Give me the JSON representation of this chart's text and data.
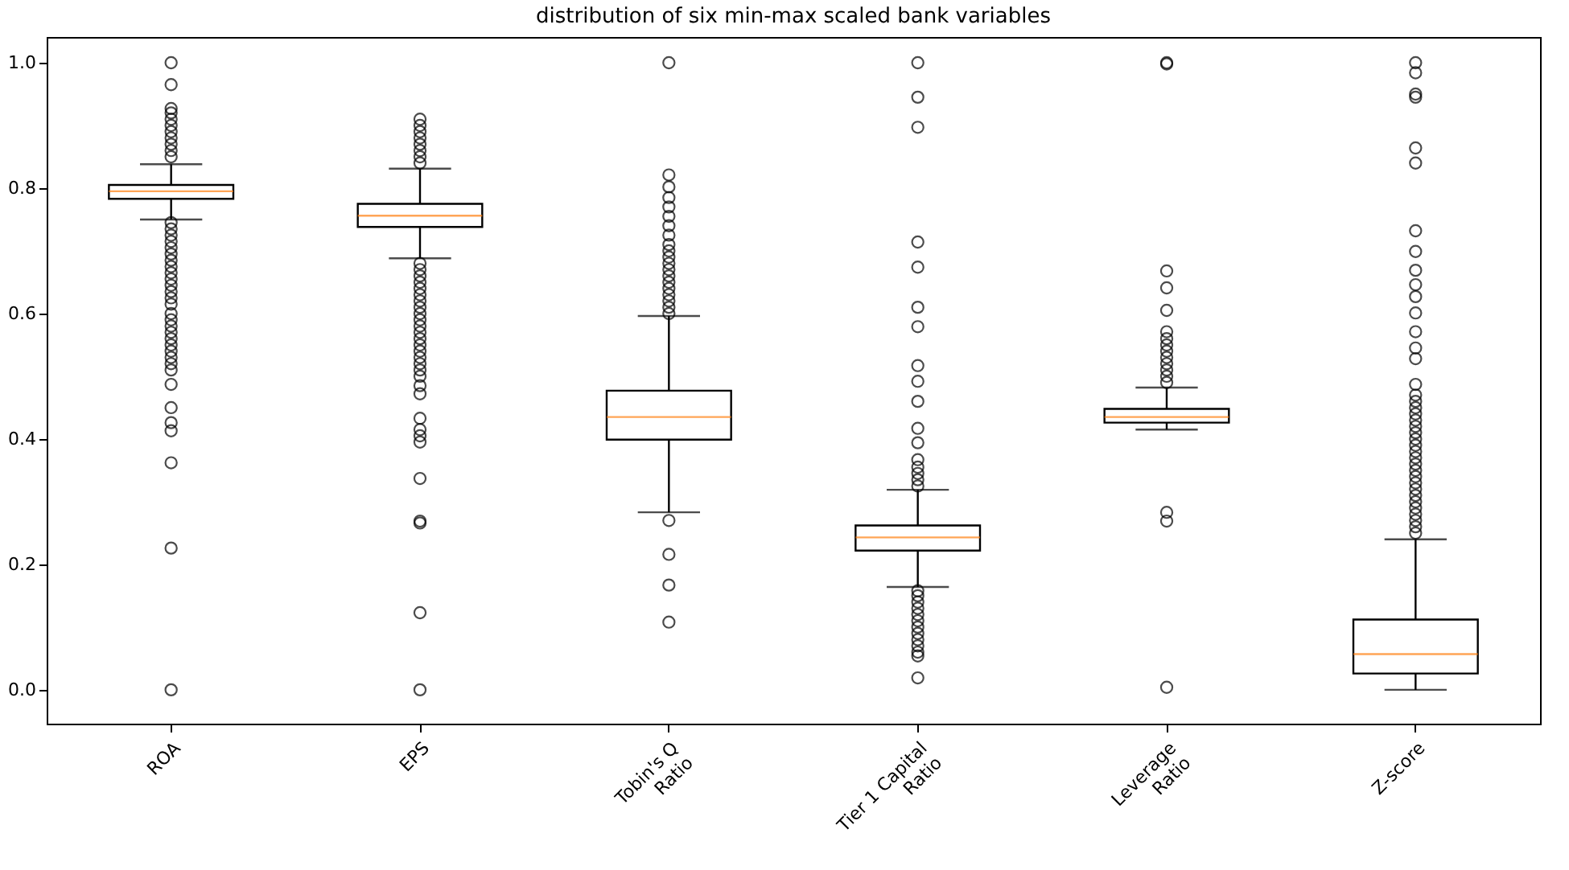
{
  "chart_data": {
    "type": "box",
    "title": "distribution of six min-max scaled bank variables",
    "categories": [
      "ROA",
      "EPS",
      "Tobin's Q\nRatio",
      "Tier 1 Capital\nRatio",
      "Leverage\nRatio",
      "Z-score"
    ],
    "ylim": [
      -0.054,
      1.041
    ],
    "yticks": [
      {
        "value": 0,
        "label": "0.0"
      },
      {
        "value": 0.2,
        "label": "0.2"
      },
      {
        "value": 0.4,
        "label": "0.4"
      },
      {
        "value": 0.6,
        "label": "0.6"
      },
      {
        "value": 0.8,
        "label": "0.8"
      },
      {
        "value": 1,
        "label": "1.0"
      }
    ],
    "grid": false,
    "boxes": [
      {
        "low": 0.75,
        "q1": 0.783,
        "median": 0.795,
        "q3": 0.805,
        "high": 0.838,
        "outliers": [
          1.0,
          0.965,
          0.927,
          0.92,
          0.91,
          0.9,
          0.89,
          0.88,
          0.87,
          0.86,
          0.85,
          0.745,
          0.735,
          0.725,
          0.715,
          0.705,
          0.695,
          0.685,
          0.675,
          0.665,
          0.655,
          0.645,
          0.635,
          0.625,
          0.615,
          0.6,
          0.59,
          0.58,
          0.57,
          0.56,
          0.55,
          0.54,
          0.53,
          0.52,
          0.51,
          0.487,
          0.45,
          0.426,
          0.413,
          0.362,
          0.226,
          0.0
        ]
      },
      {
        "low": 0.688,
        "q1": 0.738,
        "median": 0.756,
        "q3": 0.775,
        "high": 0.831,
        "outliers": [
          0.91,
          0.9,
          0.89,
          0.88,
          0.87,
          0.86,
          0.85,
          0.84,
          0.68,
          0.67,
          0.66,
          0.65,
          0.64,
          0.63,
          0.62,
          0.61,
          0.6,
          0.59,
          0.58,
          0.57,
          0.56,
          0.55,
          0.54,
          0.53,
          0.52,
          0.51,
          0.5,
          0.485,
          0.472,
          0.433,
          0.415,
          0.405,
          0.395,
          0.337,
          0.269,
          0.266,
          0.123,
          0.0
        ]
      },
      {
        "low": 0.283,
        "q1": 0.399,
        "median": 0.435,
        "q3": 0.477,
        "high": 0.596,
        "outliers": [
          1.0,
          0.821,
          0.802,
          0.785,
          0.77,
          0.755,
          0.74,
          0.725,
          0.71,
          0.7,
          0.69,
          0.68,
          0.67,
          0.66,
          0.65,
          0.64,
          0.63,
          0.62,
          0.61,
          0.6,
          0.27,
          0.216,
          0.167,
          0.108
        ]
      },
      {
        "low": 0.164,
        "q1": 0.222,
        "median": 0.243,
        "q3": 0.262,
        "high": 0.319,
        "outliers": [
          1.0,
          0.945,
          0.897,
          0.714,
          0.674,
          0.61,
          0.579,
          0.517,
          0.492,
          0.46,
          0.417,
          0.394,
          0.367,
          0.355,
          0.345,
          0.335,
          0.325,
          0.158,
          0.15,
          0.14,
          0.13,
          0.12,
          0.11,
          0.1,
          0.09,
          0.08,
          0.07,
          0.06,
          0.054,
          0.019
        ]
      },
      {
        "low": 0.415,
        "q1": 0.426,
        "median": 0.435,
        "q3": 0.448,
        "high": 0.482,
        "outliers": [
          1.0,
          0.998,
          0.668,
          0.641,
          0.605,
          0.571,
          0.56,
          0.55,
          0.54,
          0.53,
          0.52,
          0.51,
          0.5,
          0.49,
          0.283,
          0.269,
          0.004
        ]
      },
      {
        "low": 0.0,
        "q1": 0.026,
        "median": 0.057,
        "q3": 0.112,
        "high": 0.24,
        "outliers": [
          1.0,
          0.984,
          0.95,
          0.945,
          0.864,
          0.84,
          0.732,
          0.699,
          0.669,
          0.646,
          0.627,
          0.601,
          0.571,
          0.545,
          0.528,
          0.487,
          0.47,
          0.46,
          0.45,
          0.44,
          0.43,
          0.42,
          0.41,
          0.4,
          0.39,
          0.38,
          0.37,
          0.36,
          0.35,
          0.34,
          0.33,
          0.32,
          0.31,
          0.3,
          0.29,
          0.28,
          0.27,
          0.26,
          0.25
        ]
      }
    ]
  }
}
